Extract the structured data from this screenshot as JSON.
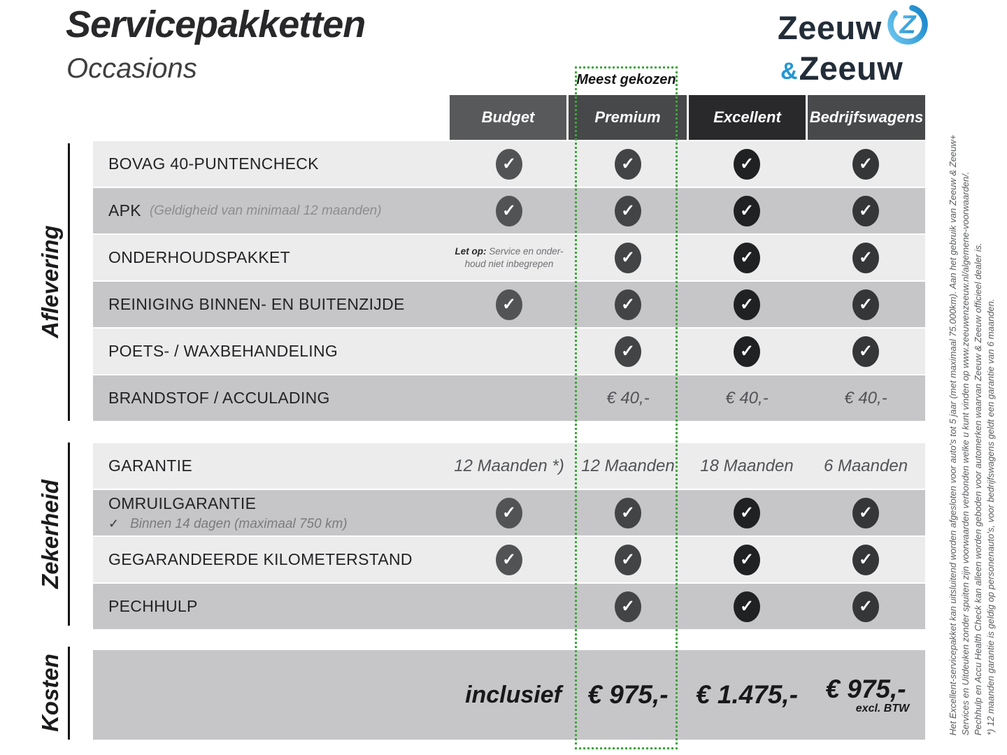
{
  "page": {
    "title": "Servicepakketten",
    "subtitle": "Occasions"
  },
  "logo": {
    "top": "Zeeuw",
    "amp": "&",
    "bottom": "Zeeuw",
    "navy": "#222d38",
    "blue": "#2496d3"
  },
  "highlight": {
    "label": "Meest gekozen",
    "border_color": "#3aa838"
  },
  "icons": {
    "check": "✓"
  },
  "columns": [
    {
      "id": "budget",
      "label": "Budget",
      "header_bg": "#58595b",
      "check_bg": "#525355"
    },
    {
      "id": "premium",
      "label": "Premium",
      "header_bg": "#474849",
      "check_bg": "#434446",
      "highlighted": true
    },
    {
      "id": "excellent",
      "label": "Excellent",
      "header_bg": "#29292b",
      "check_bg": "#202123"
    },
    {
      "id": "bedrijfswagens",
      "label": "Bedrijfswagens",
      "header_bg": "#48494b",
      "check_bg": "#353638"
    }
  ],
  "sections": [
    {
      "id": "aflevering",
      "label": "Aflevering",
      "rows": [
        {
          "label": "BOVAG 40-PUNTENCHECK",
          "cells": [
            {
              "type": "check"
            },
            {
              "type": "check"
            },
            {
              "type": "check"
            },
            {
              "type": "check"
            }
          ]
        },
        {
          "label": "APK",
          "note": "(Geldigheid van minimaal 12 maanden)",
          "cells": [
            {
              "type": "check"
            },
            {
              "type": "check"
            },
            {
              "type": "check"
            },
            {
              "type": "check"
            }
          ]
        },
        {
          "label": "ONDERHOUDSPAKKET",
          "cells": [
            {
              "type": "remark",
              "lead": "Let op:",
              "lines": [
                "Service en onder-",
                "houd niet inbegrepen"
              ]
            },
            {
              "type": "check"
            },
            {
              "type": "check"
            },
            {
              "type": "check"
            }
          ]
        },
        {
          "label": "REINIGING BINNEN- EN BUITENZIJDE",
          "cells": [
            {
              "type": "check"
            },
            {
              "type": "check"
            },
            {
              "type": "check"
            },
            {
              "type": "check"
            }
          ]
        },
        {
          "label": "POETS- / WAXBEHANDELING",
          "cells": [
            {
              "type": "empty"
            },
            {
              "type": "check"
            },
            {
              "type": "check"
            },
            {
              "type": "check"
            }
          ]
        },
        {
          "label": "BRANDSTOF / ACCULADING",
          "cells": [
            {
              "type": "empty"
            },
            {
              "type": "text",
              "value": "€ 40,-"
            },
            {
              "type": "text",
              "value": "€ 40,-"
            },
            {
              "type": "text",
              "value": "€ 40,-"
            }
          ]
        }
      ]
    },
    {
      "id": "zekerheid",
      "label": "Zekerheid",
      "rows": [
        {
          "label": "GARANTIE",
          "cells": [
            {
              "type": "text",
              "value": "12 Maanden *)"
            },
            {
              "type": "text",
              "value": "12 Maanden"
            },
            {
              "type": "text",
              "value": "18 Maanden"
            },
            {
              "type": "text",
              "value": "6 Maanden"
            }
          ]
        },
        {
          "label": "OMRUILGARANTIE",
          "sub": "Binnen 14 dagen (maximaal 750 km)",
          "cells": [
            {
              "type": "check"
            },
            {
              "type": "check"
            },
            {
              "type": "check"
            },
            {
              "type": "check"
            }
          ]
        },
        {
          "label": "GEGARANDEERDE KILOMETERSTAND",
          "cells": [
            {
              "type": "check"
            },
            {
              "type": "check"
            },
            {
              "type": "check"
            },
            {
              "type": "check"
            }
          ]
        },
        {
          "label": "PECHHULP",
          "cells": [
            {
              "type": "empty"
            },
            {
              "type": "check"
            },
            {
              "type": "check"
            },
            {
              "type": "check"
            }
          ]
        }
      ]
    },
    {
      "id": "kosten",
      "label": "Kosten"
    }
  ],
  "kosten": {
    "budget": "inclusief",
    "premium": "€ 975,-",
    "excellent": "€ 1.475,-",
    "bedrijfswagens": "€ 975,-",
    "bedrijfswagens_sub": "excl. BTW"
  },
  "disclaimer": {
    "lines": [
      "Het Excellent-servicepakket kan uitsluitend worden afgesloten voor auto's tot 5 jaar (met maximaal 75.000km). Aan het gebruik van Zeeuw & Zeeuw+",
      "Services en Uitdeuken zonder spuiten zijn voorwaarden verbonden welke u kunt vinden op www.zeeuwenzeeuw.nl/algemene-voorwaarden/.",
      "Pechhulp en Accu Health Check kan alleen worden geboden voor automerken waarvan Zeeuw & Zeeuw officieel dealer is.",
      "*) 12 maanden garantie is geldig op personenauto's, voor bedrijfswagens geldt een garantie van 6 maanden."
    ]
  }
}
